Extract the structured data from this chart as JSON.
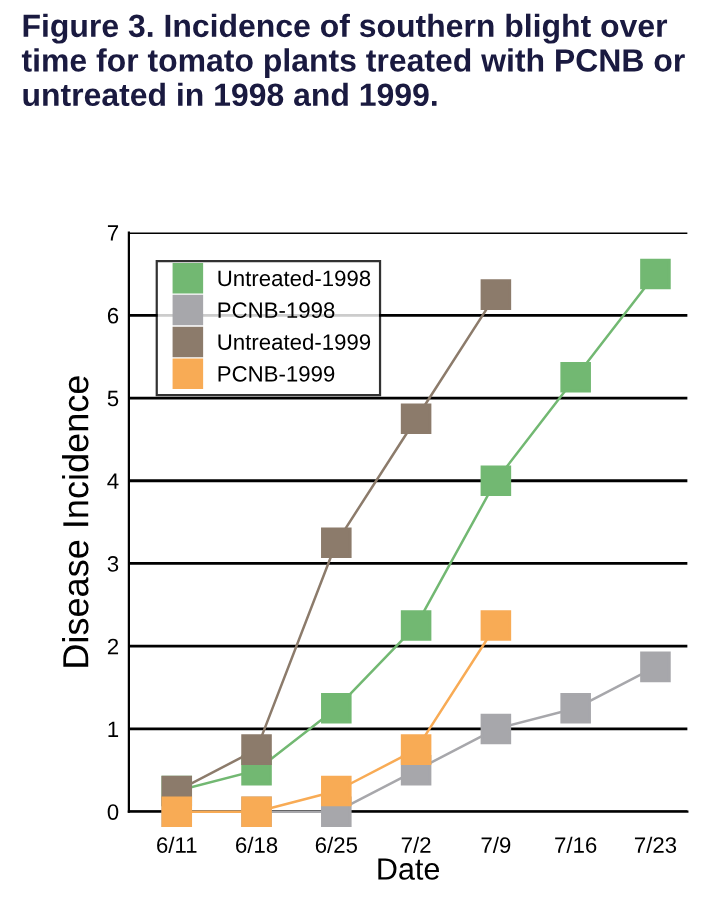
{
  "chart_data": {
    "type": "line",
    "title": "Figure 3. Incidence of southern blight over time for tomato plants treated with PCNB or untreated in 1998 and 1999.",
    "xlabel": "Date",
    "ylabel": "Disease Incidence",
    "categories": [
      "6/11",
      "6/18",
      "6/25",
      "7/2",
      "7/9",
      "7/16",
      "7/23"
    ],
    "series": [
      {
        "name": "Untreated-1998",
        "color": "#72b872",
        "values": [
          0.25,
          0.5,
          1.25,
          2.25,
          4.0,
          5.25,
          6.5
        ]
      },
      {
        "name": "PCNB-1998",
        "color": "#a7a7ab",
        "values": [
          0,
          0,
          0,
          0.5,
          1.0,
          1.25,
          1.75
        ]
      },
      {
        "name": "Untreated-1999",
        "color": "#8c7b6b",
        "values": [
          0.25,
          0.75,
          3.25,
          4.75,
          6.25,
          null,
          null
        ]
      },
      {
        "name": "PCNB-1999",
        "color": "#f8ab55",
        "values": [
          0,
          0,
          0.25,
          0.75,
          2.25,
          null,
          null
        ]
      }
    ],
    "ylim": [
      0,
      7
    ],
    "yticks": [
      0,
      1,
      2,
      3,
      4,
      5,
      6,
      7
    ],
    "grid": "y",
    "legend": "top left",
    "marker": "square",
    "line_style": "solid"
  }
}
